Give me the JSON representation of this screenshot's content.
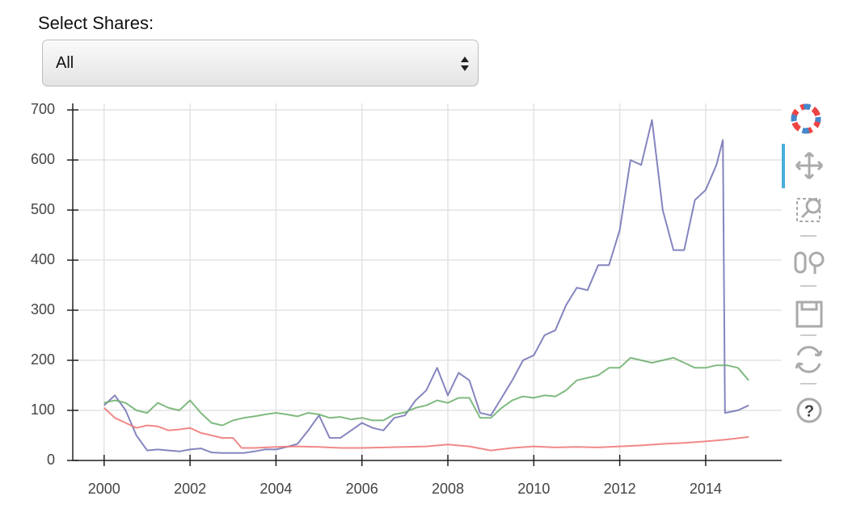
{
  "select_label": "Select Shares:",
  "select_value": "All",
  "chart_data": {
    "type": "line",
    "xlim": [
      1999.27,
      2015.77
    ],
    "xticks": [
      2000,
      2002,
      2004,
      2006,
      2008,
      2010,
      2012,
      2014
    ],
    "ylim": [
      0,
      713
    ],
    "yticks": [
      0,
      100,
      200,
      300,
      400,
      500,
      600,
      700
    ],
    "grid": true,
    "series": [
      {
        "color": "#7070b4",
        "x": [
          2000,
          2000.25,
          2000.5,
          2000.75,
          2001,
          2001.25,
          2001.5,
          2001.75,
          2002,
          2002.25,
          2002.5,
          2002.75,
          2003,
          2003.25,
          2003.5,
          2003.75,
          2004,
          2004.25,
          2004.5,
          2004.75,
          2005,
          2005.25,
          2005.5,
          2005.75,
          2006,
          2006.25,
          2006.5,
          2006.75,
          2007,
          2007.25,
          2007.5,
          2007.75,
          2008,
          2008.25,
          2008.5,
          2008.75,
          2009,
          2009.25,
          2009.5,
          2009.75,
          2010,
          2010.25,
          2010.5,
          2010.75,
          2011,
          2011.25,
          2011.5,
          2011.75,
          2012,
          2012.25,
          2012.5,
          2012.75,
          2013,
          2013.25,
          2013.5,
          2013.75,
          2014,
          2014.25,
          2014.4,
          2014.45,
          2014.75,
          2015
        ],
        "values": [
          110,
          130,
          100,
          50,
          20,
          22,
          20,
          18,
          22,
          24,
          16,
          15,
          15,
          15,
          18,
          22,
          22,
          27,
          33,
          60,
          90,
          45,
          45,
          60,
          75,
          65,
          60,
          85,
          90,
          120,
          140,
          185,
          130,
          175,
          160,
          95,
          90,
          125,
          160,
          200,
          210,
          250,
          260,
          310,
          345,
          340,
          390,
          390,
          460,
          600,
          590,
          680,
          500,
          420,
          420,
          520,
          540,
          590,
          640,
          95,
          100,
          110
        ]
      },
      {
        "color": "#6aae6a",
        "x": [
          2000,
          2000.25,
          2000.5,
          2000.75,
          2001,
          2001.25,
          2001.5,
          2001.75,
          2002,
          2002.25,
          2002.5,
          2002.75,
          2003,
          2003.25,
          2003.5,
          2003.75,
          2004,
          2004.25,
          2004.5,
          2004.75,
          2005,
          2005.25,
          2005.5,
          2005.75,
          2006,
          2006.25,
          2006.5,
          2006.75,
          2007,
          2007.25,
          2007.5,
          2007.75,
          2008,
          2008.25,
          2008.5,
          2008.75,
          2009,
          2009.25,
          2009.5,
          2009.75,
          2010,
          2010.25,
          2010.5,
          2010.75,
          2011,
          2011.25,
          2011.5,
          2011.75,
          2012,
          2012.25,
          2012.5,
          2012.75,
          2013,
          2013.25,
          2013.5,
          2013.75,
          2014,
          2014.25,
          2014.5,
          2014.75,
          2015
        ],
        "values": [
          115,
          120,
          115,
          100,
          95,
          115,
          105,
          100,
          120,
          95,
          75,
          70,
          80,
          85,
          88,
          92,
          95,
          92,
          88,
          95,
          92,
          85,
          87,
          82,
          85,
          80,
          80,
          92,
          96,
          105,
          110,
          120,
          115,
          125,
          125,
          85,
          85,
          105,
          120,
          128,
          125,
          130,
          128,
          140,
          160,
          165,
          170,
          185,
          185,
          205,
          200,
          195,
          200,
          205,
          195,
          185,
          185,
          190,
          190,
          185,
          160
        ]
      },
      {
        "color": "#ef7373",
        "x": [
          2000,
          2000.25,
          2000.5,
          2000.75,
          2001,
          2001.25,
          2001.5,
          2001.75,
          2002,
          2002.25,
          2002.5,
          2002.75,
          2003,
          2003.2,
          2003.5,
          2004,
          2004.5,
          2005,
          2005.5,
          2006,
          2006.5,
          2007,
          2007.5,
          2008,
          2008.5,
          2009,
          2009.5,
          2010,
          2010.5,
          2011,
          2011.5,
          2012,
          2012.5,
          2013,
          2013.5,
          2014,
          2014.5,
          2015
        ],
        "values": [
          105,
          85,
          75,
          65,
          70,
          68,
          60,
          62,
          65,
          55,
          50,
          45,
          45,
          25,
          25,
          27,
          28,
          27,
          25,
          25,
          26,
          27,
          28,
          32,
          28,
          20,
          25,
          28,
          26,
          27,
          26,
          28,
          30,
          33,
          35,
          38,
          42,
          47
        ]
      }
    ]
  }
}
